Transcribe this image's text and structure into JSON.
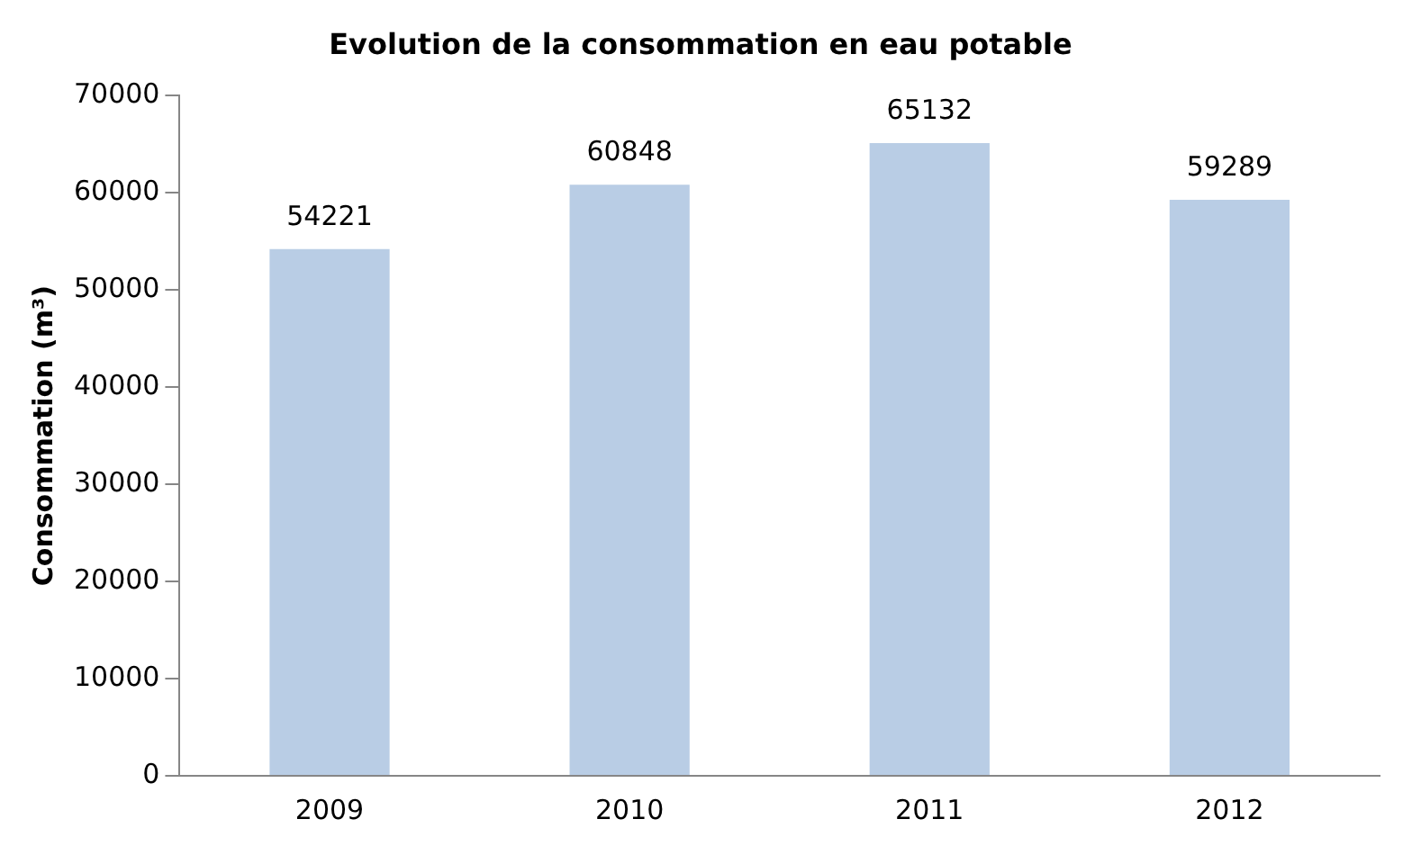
{
  "chart_data": {
    "type": "bar",
    "title": "Evolution de la consommation en eau potable",
    "ylabel": "Consommation (m³)",
    "categories": [
      "2009",
      "2010",
      "2011",
      "2012"
    ],
    "values": [
      54221,
      60848,
      65132,
      59289
    ],
    "color": "#b9cde5",
    "ylim": [
      0,
      70000
    ],
    "yticks": [
      0,
      10000,
      20000,
      30000,
      40000,
      50000,
      60000,
      70000
    ],
    "grid": false,
    "data_labels": true
  }
}
